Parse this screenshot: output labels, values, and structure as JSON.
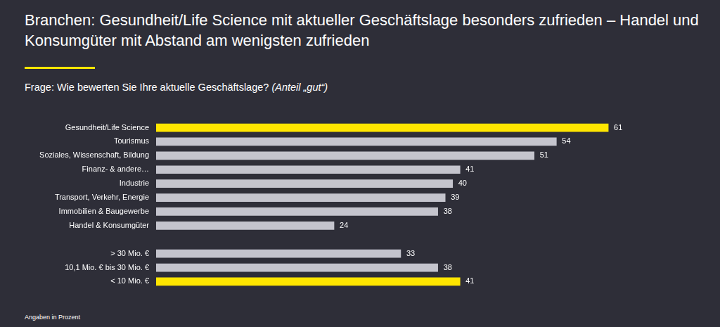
{
  "chart_data": {
    "type": "bar",
    "orientation": "horizontal",
    "title": "Branchen: Gesundheit/Life Science mit aktueller Geschäftslage besonders zufrieden – Handel und Konsumgüter mit Abstand am wenigsten zufrieden",
    "subtitle": "Frage: Wie bewerten Sie Ihre aktuelle Geschäftslage? (Anteil „gut“)",
    "footnote": "Angaben in Prozent",
    "categories": [
      "Gesundheit/Life Science",
      "Tourismus",
      "Soziales, Wissenschaft, Bildung",
      "Finanz- & andere…",
      "Industrie",
      "Transport, Verkehr, Energie",
      "Immobilien & Baugewerbe",
      "Handel & Konsumgüter",
      null,
      "> 30 Mio. €",
      "10,1 Mio. € bis 30 Mio. €",
      "< 10 Mio. €"
    ],
    "values": [
      61,
      54,
      51,
      41,
      40,
      39,
      38,
      24,
      null,
      33,
      38,
      41
    ],
    "colors": [
      "#ffe600",
      "#c4c4cd",
      "#c4c4cd",
      "#c4c4cd",
      "#c4c4cd",
      "#c4c4cd",
      "#c4c4cd",
      "#c4c4cd",
      null,
      "#c4c4cd",
      "#c4c4cd",
      "#ffe600"
    ],
    "xlim": [
      0,
      70
    ],
    "grid": false,
    "data_labels": true,
    "tick_labels": "y"
  }
}
